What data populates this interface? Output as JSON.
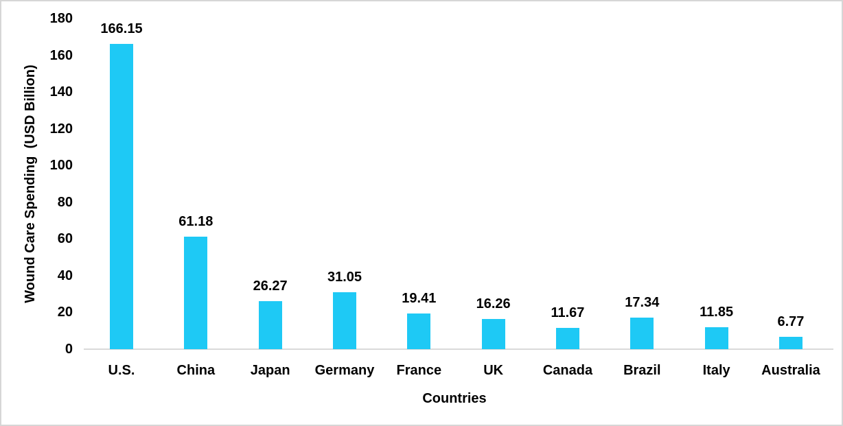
{
  "chart_data": {
    "type": "bar",
    "categories": [
      "U.S.",
      "China",
      "Japan",
      "Germany",
      "France",
      "UK",
      "Canada",
      "Brazil",
      "Italy",
      "Australia"
    ],
    "values": [
      166.15,
      61.18,
      26.27,
      31.05,
      19.41,
      16.26,
      11.67,
      17.34,
      11.85,
      6.77
    ],
    "data_labels": [
      "166.15",
      "61.18",
      "26.27",
      "31.05",
      "19.41",
      "16.26",
      "11.67",
      "17.34",
      "11.85",
      "6.77"
    ],
    "title": "",
    "xlabel": "Countries",
    "ylabel": "Wound Care Spending  (USD Billion)",
    "ylim": [
      0,
      180
    ],
    "yticks": [
      0,
      20,
      40,
      60,
      80,
      100,
      120,
      140,
      160,
      180
    ],
    "grid": false,
    "legend": "none",
    "bar_color": "#1EC9F5",
    "axis_line_color": "#D9D9D9",
    "text_color": "#000000",
    "background_color": "#FFFFFF",
    "border_color": "#D6D6D6"
  }
}
